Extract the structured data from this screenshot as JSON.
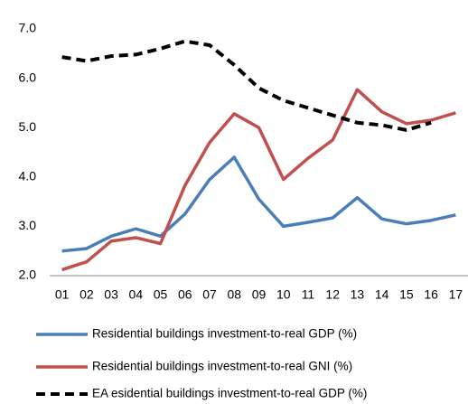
{
  "chart_data": {
    "type": "line",
    "categories": [
      "01",
      "02",
      "03",
      "04",
      "05",
      "06",
      "07",
      "08",
      "09",
      "10",
      "11",
      "12",
      "13",
      "14",
      "15",
      "16",
      "17"
    ],
    "series": [
      {
        "name": "Residential buildings investment-to-real GDP (%)",
        "color": "#4a7ebb",
        "dashed": false,
        "values": [
          2.5,
          2.55,
          2.8,
          2.95,
          2.8,
          3.25,
          3.95,
          4.4,
          3.55,
          3.0,
          3.08,
          3.17,
          3.58,
          3.15,
          3.05,
          3.12,
          3.23
        ]
      },
      {
        "name": "Residential buildings investment-to-real GNI (%)",
        "color": "#c0504d",
        "dashed": false,
        "values": [
          2.12,
          2.28,
          2.7,
          2.77,
          2.65,
          3.83,
          4.7,
          5.28,
          5.0,
          3.95,
          4.38,
          4.75,
          5.77,
          5.32,
          5.08,
          5.15,
          5.3
        ]
      },
      {
        "name": "EA esidential buildings investment-to-real GDP (%)",
        "color": "#000000",
        "dashed": true,
        "values": [
          6.43,
          6.35,
          6.45,
          6.48,
          6.6,
          6.75,
          6.67,
          6.27,
          5.8,
          5.55,
          5.4,
          5.25,
          5.1,
          5.05,
          4.95,
          5.1,
          null
        ]
      }
    ],
    "ylim": [
      2,
      7
    ],
    "yticks": [
      {
        "value": 2,
        "label": "2.0"
      },
      {
        "value": 3,
        "label": "3.0"
      },
      {
        "value": 4,
        "label": "4.0"
      },
      {
        "value": 5,
        "label": "5.0"
      },
      {
        "value": 6,
        "label": "6.0"
      },
      {
        "value": 7,
        "label": "7.0"
      }
    ],
    "grid": false
  }
}
